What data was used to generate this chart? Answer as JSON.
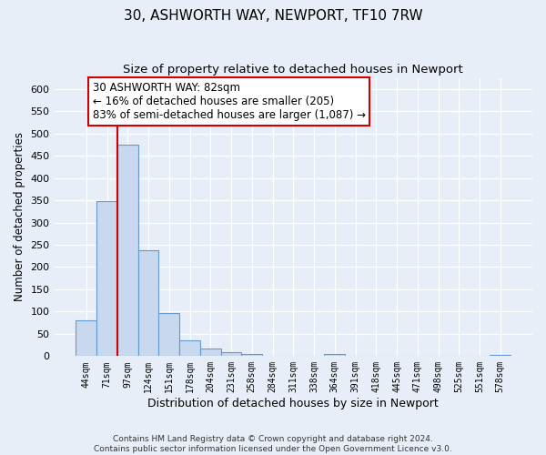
{
  "title": "30, ASHWORTH WAY, NEWPORT, TF10 7RW",
  "subtitle": "Size of property relative to detached houses in Newport",
  "xlabel": "Distribution of detached houses by size in Newport",
  "ylabel": "Number of detached properties",
  "bar_labels": [
    "44sqm",
    "71sqm",
    "97sqm",
    "124sqm",
    "151sqm",
    "178sqm",
    "204sqm",
    "231sqm",
    "258sqm",
    "284sqm",
    "311sqm",
    "338sqm",
    "364sqm",
    "391sqm",
    "418sqm",
    "445sqm",
    "471sqm",
    "498sqm",
    "525sqm",
    "551sqm",
    "578sqm"
  ],
  "bar_values": [
    80,
    348,
    475,
    238,
    97,
    35,
    18,
    8,
    5,
    0,
    0,
    0,
    5,
    0,
    0,
    0,
    0,
    0,
    0,
    0,
    3
  ],
  "bar_color": "#c8d8ee",
  "bar_edge_color": "#6699cc",
  "ylim": [
    0,
    625
  ],
  "yticks": [
    0,
    50,
    100,
    150,
    200,
    250,
    300,
    350,
    400,
    450,
    500,
    550,
    600
  ],
  "vline_color": "#cc0000",
  "annotation_text_line1": "30 ASHWORTH WAY: 82sqm",
  "annotation_text_line2": "← 16% of detached houses are smaller (205)",
  "annotation_text_line3": "83% of semi-detached houses are larger (1,087) →",
  "annotation_box_color": "#ffffff",
  "annotation_box_edgecolor": "#cc0000",
  "footer_text": "Contains HM Land Registry data © Crown copyright and database right 2024.\nContains public sector information licensed under the Open Government Licence v3.0.",
  "background_color": "#e8eef8",
  "grid_color": "#ffffff",
  "title_fontsize": 11,
  "subtitle_fontsize": 9.5
}
